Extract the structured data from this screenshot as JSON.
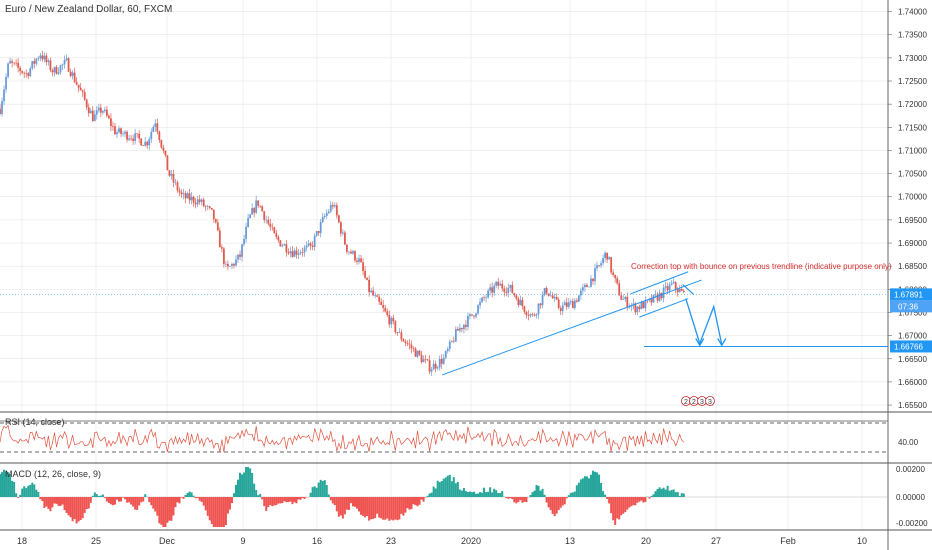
{
  "title": "Euro / New Zealand Dollar, 60, FXCM",
  "colors": {
    "up": "#6a9bd8",
    "down": "#e05b4f",
    "trend": "#2196f3",
    "rsi": "#e0533f",
    "macd_pos": "#26a69a",
    "macd_neg": "#ef5350",
    "annotation": "#d32f2f",
    "grid": "#e1e1e1",
    "axis_text": "#333333"
  },
  "price_axis": {
    "ticks": [
      "1.74000",
      "1.73500",
      "1.73000",
      "1.72500",
      "1.72000",
      "1.71500",
      "1.71000",
      "1.70500",
      "1.70000",
      "1.69500",
      "1.69000",
      "1.68500",
      "1.68000",
      "1.67500",
      "1.67000",
      "1.66500",
      "1.66000",
      "1.65500"
    ],
    "last_price": "1.67891",
    "countdown": "07:36",
    "target_price": "1.66766"
  },
  "rsi": {
    "label": "RSI (14, close)",
    "ticks": [
      "40.00"
    ],
    "levels": [
      70,
      30
    ]
  },
  "macd": {
    "label": "MACD (12, 26, close, 9)",
    "ticks": [
      "0.00200",
      "0.00000",
      "-0.00200"
    ]
  },
  "time_axis": {
    "labels": [
      "18",
      "25",
      "Dec",
      "9",
      "16",
      "23",
      "2020",
      "13",
      "20",
      "27",
      "Feb",
      "10"
    ]
  },
  "annotation": {
    "text": "Correction top with bounce on previous trendline (indicative purpose only)"
  },
  "event_markers": [
    "2",
    "2",
    "3",
    "3"
  ],
  "chart_data": {
    "type": "candlestick",
    "symbol": "EURNZD",
    "timeframe": "60",
    "source": "FXCM",
    "price_range": [
      1.6535,
      1.7425
    ],
    "keypoints": [
      {
        "x": 0,
        "y": 1.719
      },
      {
        "x": 0.01,
        "y": 1.729
      },
      {
        "x": 0.03,
        "y": 1.7265
      },
      {
        "x": 0.045,
        "y": 1.731
      },
      {
        "x": 0.06,
        "y": 1.727
      },
      {
        "x": 0.075,
        "y": 1.729
      },
      {
        "x": 0.09,
        "y": 1.723
      },
      {
        "x": 0.105,
        "y": 1.717
      },
      {
        "x": 0.115,
        "y": 1.719
      },
      {
        "x": 0.13,
        "y": 1.714
      },
      {
        "x": 0.15,
        "y": 1.713
      },
      {
        "x": 0.165,
        "y": 1.7115
      },
      {
        "x": 0.175,
        "y": 1.7165
      },
      {
        "x": 0.19,
        "y": 1.705
      },
      {
        "x": 0.205,
        "y": 1.7
      },
      {
        "x": 0.225,
        "y": 1.699
      },
      {
        "x": 0.24,
        "y": 1.696
      },
      {
        "x": 0.255,
        "y": 1.684
      },
      {
        "x": 0.27,
        "y": 1.687
      },
      {
        "x": 0.28,
        "y": 1.695
      },
      {
        "x": 0.29,
        "y": 1.699
      },
      {
        "x": 0.31,
        "y": 1.691
      },
      {
        "x": 0.33,
        "y": 1.688
      },
      {
        "x": 0.35,
        "y": 1.689
      },
      {
        "x": 0.365,
        "y": 1.6955
      },
      {
        "x": 0.375,
        "y": 1.6985
      },
      {
        "x": 0.39,
        "y": 1.689
      },
      {
        "x": 0.405,
        "y": 1.686
      },
      {
        "x": 0.415,
        "y": 1.68
      },
      {
        "x": 0.43,
        "y": 1.676
      },
      {
        "x": 0.45,
        "y": 1.67
      },
      {
        "x": 0.47,
        "y": 1.666
      },
      {
        "x": 0.485,
        "y": 1.663
      },
      {
        "x": 0.5,
        "y": 1.665
      },
      {
        "x": 0.515,
        "y": 1.671
      },
      {
        "x": 0.53,
        "y": 1.674
      },
      {
        "x": 0.545,
        "y": 1.678
      },
      {
        "x": 0.56,
        "y": 1.681
      },
      {
        "x": 0.575,
        "y": 1.68
      },
      {
        "x": 0.59,
        "y": 1.676
      },
      {
        "x": 0.6,
        "y": 1.674
      },
      {
        "x": 0.615,
        "y": 1.68
      },
      {
        "x": 0.63,
        "y": 1.676
      },
      {
        "x": 0.645,
        "y": 1.677
      },
      {
        "x": 0.66,
        "y": 1.6805
      },
      {
        "x": 0.675,
        "y": 1.685
      },
      {
        "x": 0.683,
        "y": 1.688
      },
      {
        "x": 0.69,
        "y": 1.683
      },
      {
        "x": 0.7,
        "y": 1.678
      },
      {
        "x": 0.715,
        "y": 1.676
      },
      {
        "x": 0.73,
        "y": 1.677
      },
      {
        "x": 0.745,
        "y": 1.679
      },
      {
        "x": 0.757,
        "y": 1.681
      },
      {
        "x": 0.77,
        "y": 1.6789
      }
    ],
    "trendlines": [
      {
        "name": "support",
        "from": {
          "x": 0.498,
          "y": 1.6615
        },
        "to": {
          "x": 0.79,
          "y": 1.682
        }
      },
      {
        "name": "channel-upper",
        "from": {
          "x": 0.71,
          "y": 1.679
        },
        "to": {
          "x": 0.775,
          "y": 1.6838
        }
      },
      {
        "name": "channel-lower",
        "from": {
          "x": 0.72,
          "y": 1.674
        },
        "to": {
          "x": 0.775,
          "y": 1.678
        }
      }
    ],
    "projection": {
      "start": 1.678,
      "target": 1.66766
    },
    "xlabel": "",
    "ylabel": ""
  }
}
